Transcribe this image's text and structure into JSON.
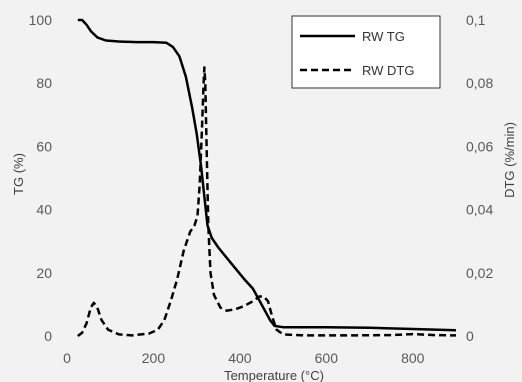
{
  "chart_data": {
    "type": "line",
    "xlabel": "Temperature (°C)",
    "ylabel_left": "TG (%)",
    "ylabel_right": "DTG (%/min)",
    "xlim": [
      0,
      900
    ],
    "ylim_left": [
      0,
      100
    ],
    "ylim_right": [
      0,
      0.1
    ],
    "x_ticks": [
      "0",
      "200",
      "400",
      "600",
      "800"
    ],
    "y_ticks_left": [
      "0",
      "20",
      "40",
      "60",
      "80",
      "100"
    ],
    "y_ticks_right": [
      "0",
      "0,02",
      "0,04",
      "0,06",
      "0,08",
      "0,1"
    ],
    "grid": false,
    "legend_position": "top-right",
    "series": [
      {
        "name": "RW TG",
        "axis": "left",
        "style": "solid",
        "color": "#000000",
        "points": [
          [
            25,
            100
          ],
          [
            35,
            100
          ],
          [
            45,
            98.5
          ],
          [
            55,
            96.5
          ],
          [
            70,
            94.5
          ],
          [
            90,
            93.5
          ],
          [
            120,
            93.2
          ],
          [
            160,
            93
          ],
          [
            200,
            93
          ],
          [
            230,
            92.8
          ],
          [
            245,
            91.5
          ],
          [
            260,
            88.5
          ],
          [
            275,
            82
          ],
          [
            290,
            72
          ],
          [
            300,
            64
          ],
          [
            310,
            54
          ],
          [
            318,
            44
          ],
          [
            325,
            35
          ],
          [
            335,
            31
          ],
          [
            350,
            28
          ],
          [
            380,
            23
          ],
          [
            410,
            18
          ],
          [
            430,
            15
          ],
          [
            450,
            10
          ],
          [
            470,
            5
          ],
          [
            480,
            3.2
          ],
          [
            500,
            2.8
          ],
          [
            600,
            2.8
          ],
          [
            700,
            2.6
          ],
          [
            800,
            2.2
          ],
          [
            900,
            1.8
          ]
        ]
      },
      {
        "name": "RW DTG",
        "axis": "right",
        "style": "dashed",
        "color": "#000000",
        "points": [
          [
            25,
            0
          ],
          [
            35,
            0.001
          ],
          [
            45,
            0.004
          ],
          [
            55,
            0.009
          ],
          [
            62,
            0.0105
          ],
          [
            70,
            0.009
          ],
          [
            80,
            0.005
          ],
          [
            95,
            0.002
          ],
          [
            120,
            0.0005
          ],
          [
            150,
            0.0002
          ],
          [
            190,
            0.0008
          ],
          [
            210,
            0.002
          ],
          [
            225,
            0.005
          ],
          [
            240,
            0.011
          ],
          [
            255,
            0.018
          ],
          [
            270,
            0.027
          ],
          [
            285,
            0.033
          ],
          [
            295,
            0.035
          ],
          [
            302,
            0.038
          ],
          [
            307,
            0.048
          ],
          [
            312,
            0.065
          ],
          [
            316,
            0.08
          ],
          [
            318,
            0.085
          ],
          [
            320,
            0.08
          ],
          [
            323,
            0.06
          ],
          [
            327,
            0.035
          ],
          [
            332,
            0.02
          ],
          [
            340,
            0.013
          ],
          [
            355,
            0.009
          ],
          [
            370,
            0.008
          ],
          [
            390,
            0.0085
          ],
          [
            410,
            0.0095
          ],
          [
            430,
            0.011
          ],
          [
            445,
            0.0125
          ],
          [
            455,
            0.0125
          ],
          [
            465,
            0.011
          ],
          [
            475,
            0.006
          ],
          [
            485,
            0.002
          ],
          [
            500,
            0.0005
          ],
          [
            550,
            0.0002
          ],
          [
            650,
            0.0002
          ],
          [
            750,
            0.0003
          ],
          [
            800,
            0.0006
          ],
          [
            850,
            0.0003
          ],
          [
            900,
            0.0002
          ]
        ]
      }
    ]
  }
}
